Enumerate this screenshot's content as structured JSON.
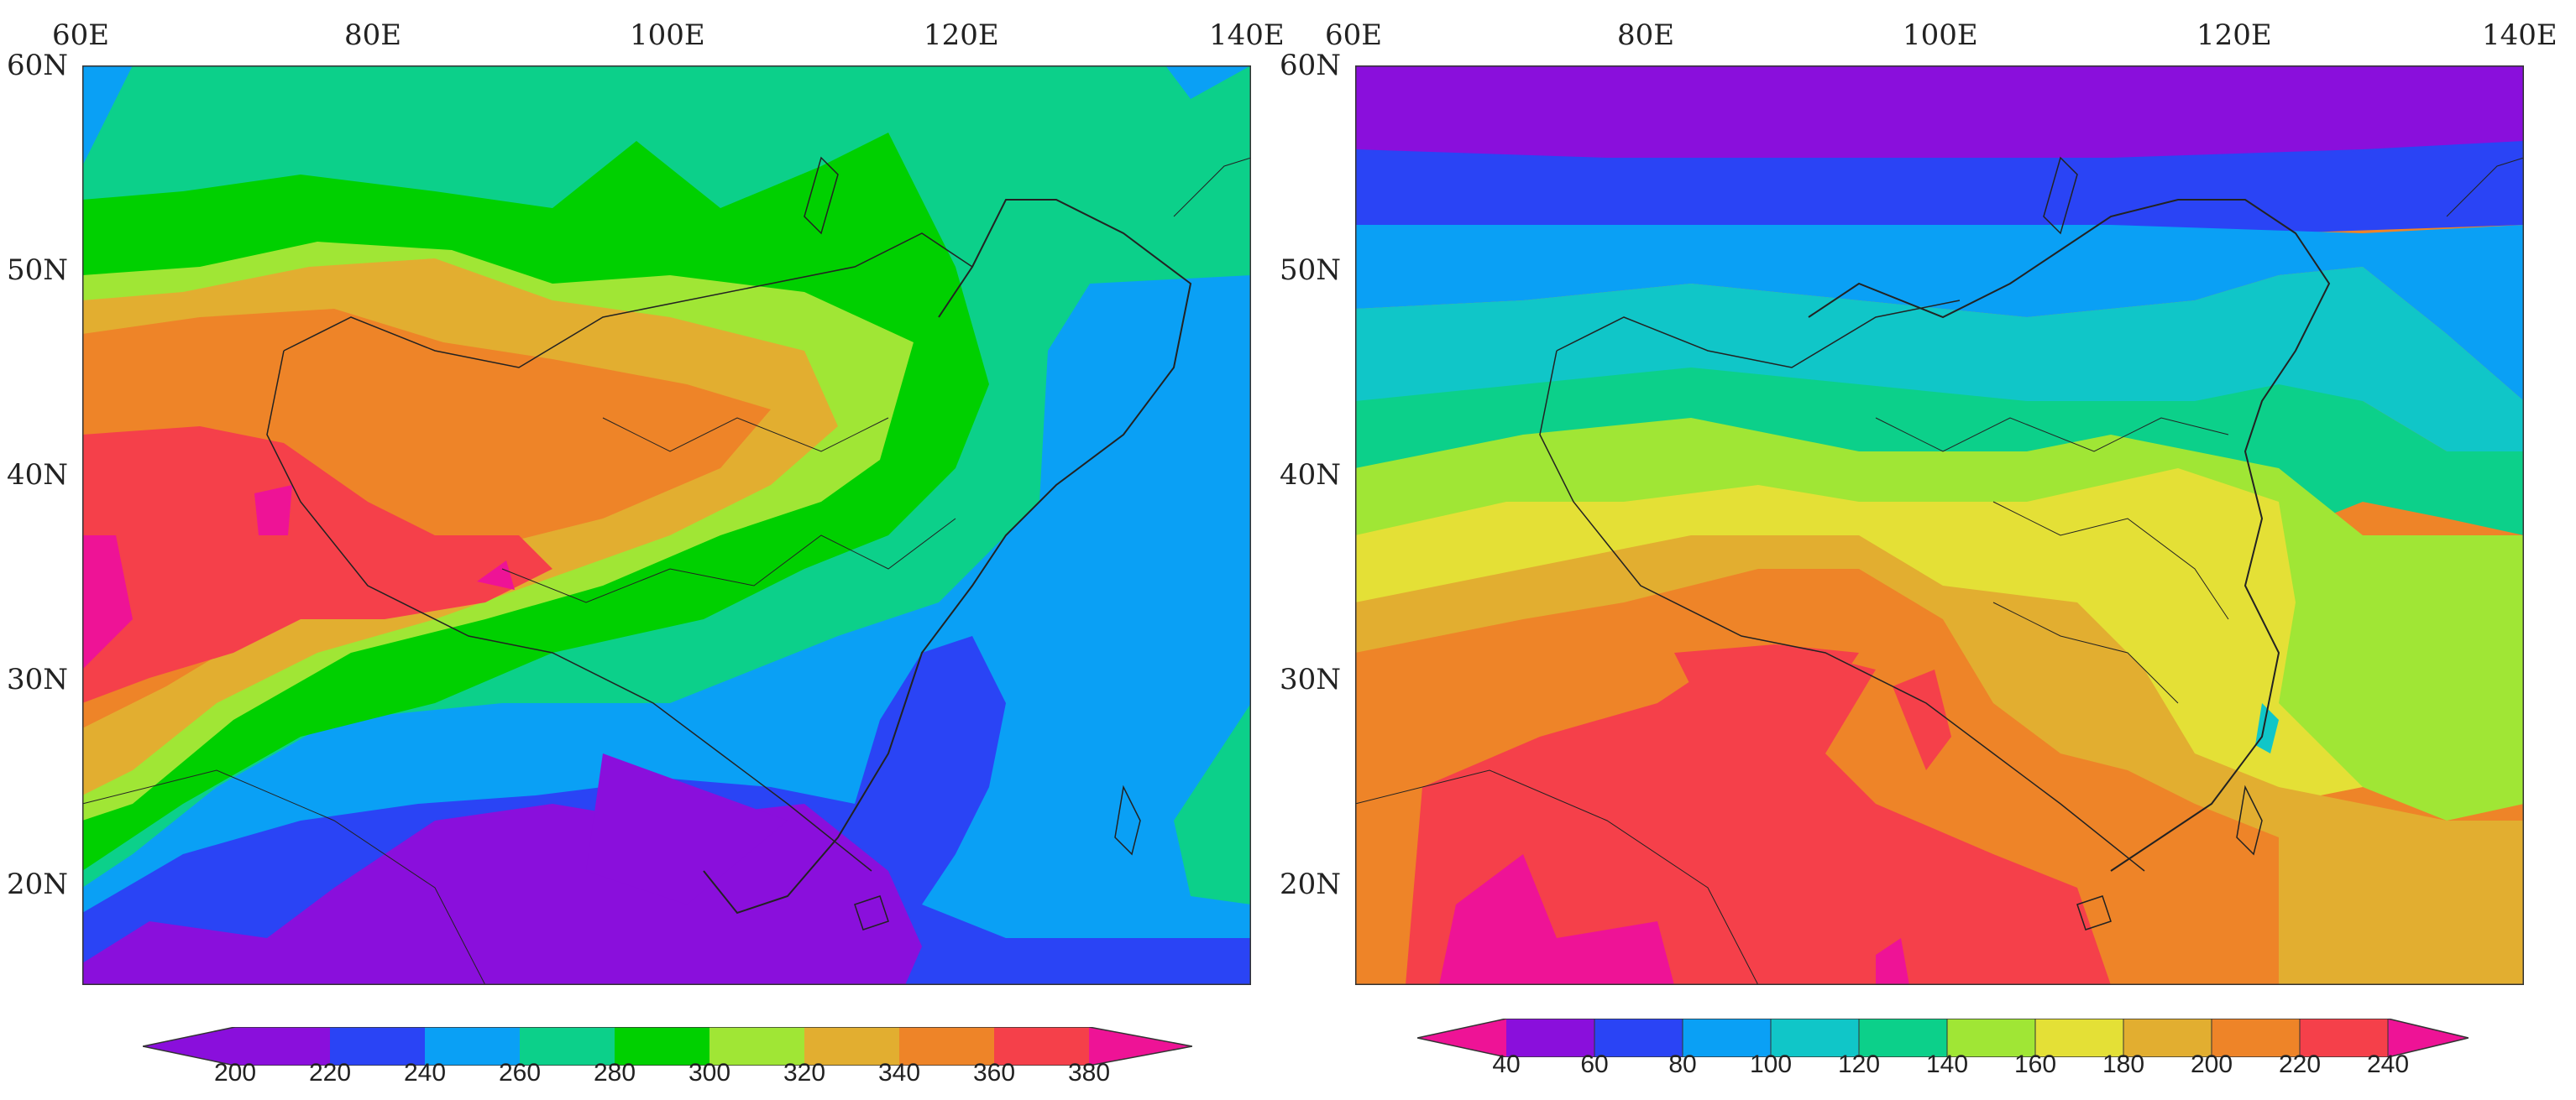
{
  "maps": [
    {
      "lon_labels": [
        "60E",
        "80E",
        "100E",
        "120E",
        "140E"
      ],
      "lat_labels": [
        "60N",
        "50N",
        "40N",
        "30N",
        "20N"
      ],
      "colorbar": {
        "labels": [
          "200",
          "220",
          "240",
          "260",
          "280",
          "300",
          "320",
          "340",
          "360",
          "380"
        ],
        "colors": [
          "#8a0fdc",
          "#8a0fdc",
          "#2a44f5",
          "#0aa0f5",
          "#0cd08a",
          "#00d000",
          "#a0e635",
          "#e2ae30",
          "#ee8428",
          "#f5404a",
          "#ee1396"
        ]
      }
    },
    {
      "lon_labels": [
        "60E",
        "80E",
        "100E",
        "120E",
        "140E"
      ],
      "lat_labels": [
        "60N",
        "50N",
        "40N",
        "30N",
        "20N"
      ],
      "colorbar": {
        "labels": [
          "40",
          "60",
          "80",
          "100",
          "120",
          "140",
          "160",
          "180",
          "200",
          "220",
          "240"
        ],
        "colors": [
          "#ee1396",
          "#8a0fdc",
          "#2a44f5",
          "#0aa0f5",
          "#10c6c8",
          "#0cd08a",
          "#a0e635",
          "#e4e036",
          "#e2ae30",
          "#ee8428",
          "#f5404a",
          "#ee1396"
        ]
      }
    }
  ]
}
